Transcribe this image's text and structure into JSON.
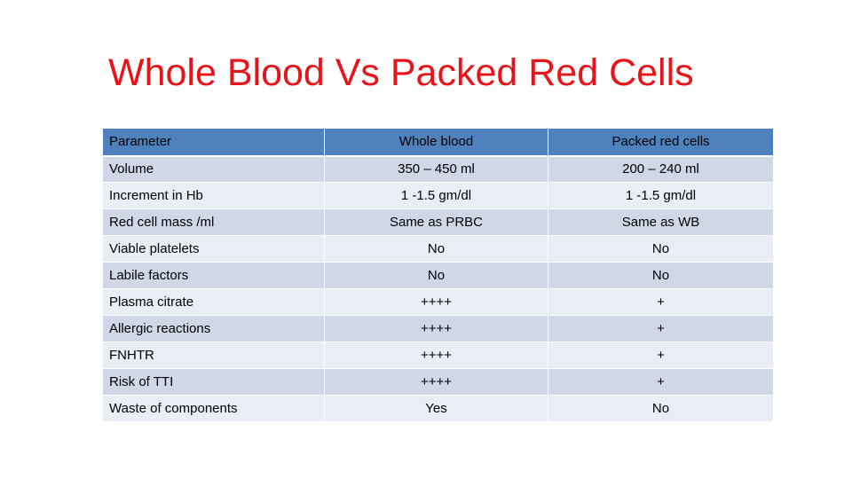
{
  "slide": {
    "title": "Whole Blood Vs Packed Red Cells"
  },
  "table": {
    "headers": [
      "Parameter",
      "Whole blood",
      "Packed red cells"
    ],
    "rows": [
      {
        "parameter": "Volume",
        "whole_blood": "350 – 450 ml",
        "packed_red_cells": "200 – 240 ml"
      },
      {
        "parameter": "Increment in Hb",
        "whole_blood": "1 -1.5 gm/dl",
        "packed_red_cells": "1 -1.5 gm/dl"
      },
      {
        "parameter": "Red cell mass /ml",
        "whole_blood": "Same as PRBC",
        "packed_red_cells": "Same as WB"
      },
      {
        "parameter": "Viable platelets",
        "whole_blood": "No",
        "packed_red_cells": "No"
      },
      {
        "parameter": "Labile factors",
        "whole_blood": "No",
        "packed_red_cells": "No"
      },
      {
        "parameter": "Plasma citrate",
        "whole_blood": "++++",
        "packed_red_cells": "+"
      },
      {
        "parameter": "Allergic reactions",
        "whole_blood": "++++",
        "packed_red_cells": "+"
      },
      {
        "parameter": "FNHTR",
        "whole_blood": "++++",
        "packed_red_cells": "+"
      },
      {
        "parameter": "Risk of TTI",
        "whole_blood": "++++",
        "packed_red_cells": "+"
      },
      {
        "parameter": "Waste of components",
        "whole_blood": "Yes",
        "packed_red_cells": "No"
      }
    ]
  },
  "colors": {
    "title": "#e8141c",
    "header_fill": "#4f81bd",
    "row_band_dark": "#d0d8e8",
    "row_band_light": "#e9edf4"
  }
}
